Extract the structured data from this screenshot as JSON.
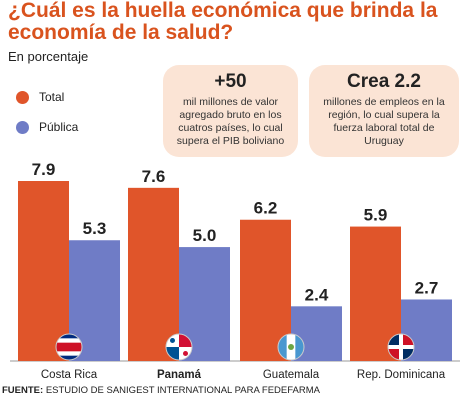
{
  "header": {
    "title": "¿Cuál es la huella económica que brinda la economía de la salud?",
    "subtitle": "En porcentaje"
  },
  "legend": [
    {
      "label": "Total",
      "color": "#e0552a"
    },
    {
      "label": "Pública",
      "color": "#6f7cc6"
    }
  ],
  "cards": [
    {
      "big": "+50",
      "text": "mil millones de valor agregado bruto en los cuatros países, lo cual supera el PIB boliviano"
    },
    {
      "big": "Crea 2.2",
      "text": "millones de empleos en la región, lo cual supera la fuerza laboral total de Uruguay"
    }
  ],
  "chart_data": {
    "type": "bar",
    "categories": [
      "Costa Rica",
      "Panamá",
      "Guatemala",
      "Rep. Dominicana"
    ],
    "highlighted_category": "Panamá",
    "series": [
      {
        "name": "Total",
        "values": [
          7.9,
          7.6,
          6.2,
          5.9
        ],
        "color": "#e0552a"
      },
      {
        "name": "Pública",
        "values": [
          5.3,
          5.0,
          2.4,
          2.7
        ],
        "color": "#6f7cc6"
      }
    ],
    "value_labels": {
      "Total": [
        "7.9",
        "7.6",
        "6.2",
        "5.9"
      ],
      "Pública": [
        "5.3",
        "5.0",
        "2.4",
        "2.7"
      ]
    },
    "ylim": [
      0,
      8.5
    ],
    "grid": false,
    "legend_position": "left",
    "flags": [
      "costa-rica-flag-icon",
      "panama-flag-icon",
      "guatemala-flag-icon",
      "dominican-republic-flag-icon"
    ]
  },
  "footer": {
    "source_label": "FUENTE:",
    "source_text": "ESTUDIO DE SANIGEST INTERNATIONAL PARA FEDEFARMA"
  }
}
